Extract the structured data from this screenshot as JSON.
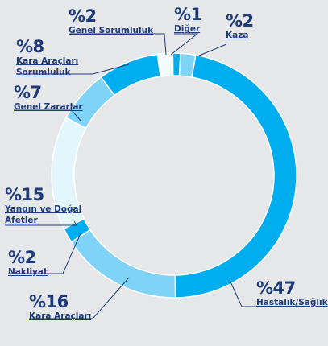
{
  "chart_data": {
    "type": "donut",
    "categories": [
      "Kaza",
      "Hastalık/Sağlık",
      "Kara Araçları",
      "Nakliyat",
      "Yangın ve Doğal Afetler",
      "Genel Zararlar",
      "Kara Araçları Sorumluluk",
      "Genel Sorumluluk",
      "Diğer"
    ],
    "values": [
      2,
      47,
      16,
      2,
      15,
      7,
      8,
      2,
      1
    ],
    "value_labels": [
      "%2",
      "%47",
      "%16",
      "%2",
      "%15",
      "%7",
      "%8",
      "%2",
      "%1"
    ],
    "colors": [
      "#7fd3f7",
      "#00aeef",
      "#7fd3f7",
      "#00aeef",
      "#e3f5fd",
      "#7fd3f7",
      "#00aeef",
      "#f3fbff",
      "#00aeef"
    ]
  }
}
